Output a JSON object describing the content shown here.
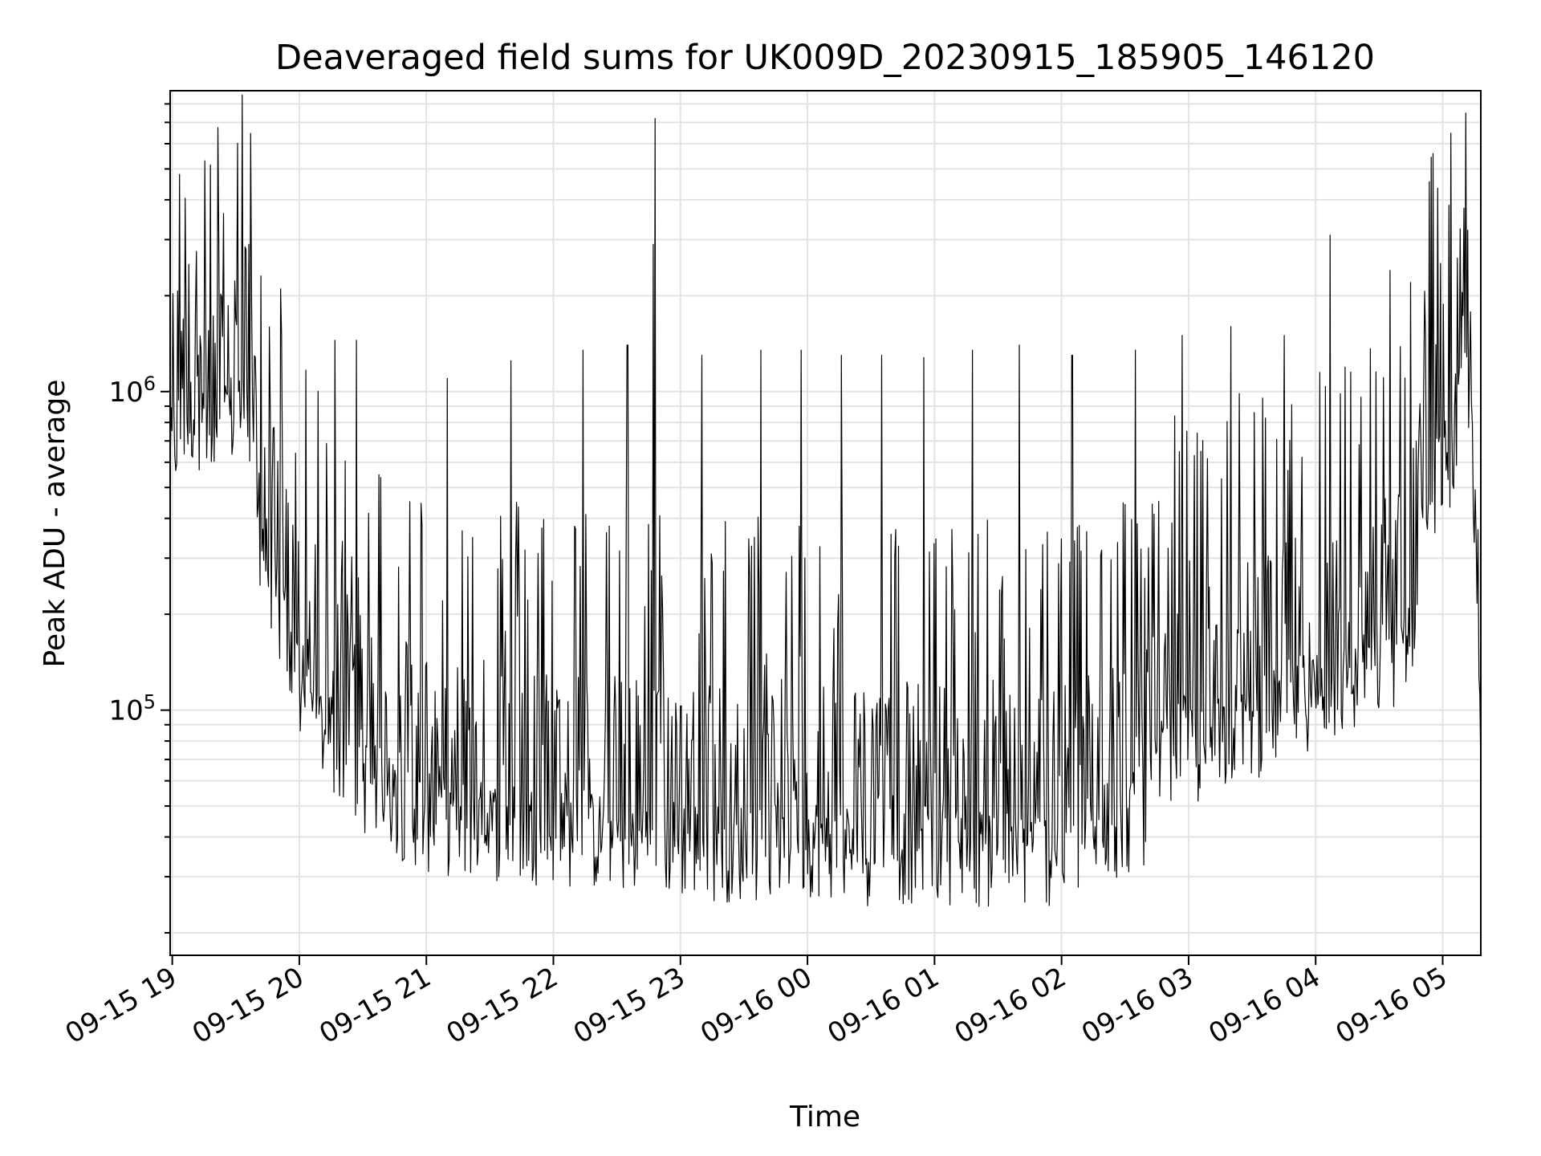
{
  "chart_data": {
    "type": "line",
    "title": "Deaveraged field sums for UK009D_20230915_185905_146120",
    "xlabel": "Time",
    "ylabel": "Peak ADU - average",
    "y_scale": "log",
    "ylim": [
      17000,
      8800000
    ],
    "xlim": [
      "09-15 18:59",
      "09-16 05:18"
    ],
    "grid": true,
    "line_color": "#000000",
    "x_ticks": [
      "09-15 19",
      "09-15 20",
      "09-15 21",
      "09-15 22",
      "09-15 23",
      "09-16 00",
      "09-16 01",
      "09-16 02",
      "09-16 03",
      "09-16 04",
      "09-16 05"
    ],
    "y_ticks": [
      {
        "value": 100000,
        "base": "10",
        "exp": "5"
      },
      {
        "value": 1000000,
        "base": "10",
        "exp": "6"
      }
    ],
    "series": [
      {
        "baseline": [
          [
            "09-15 18:59",
            650000
          ],
          [
            "09-15 19:05",
            820000
          ],
          [
            "09-15 19:12",
            900000
          ],
          [
            "09-15 19:20",
            600000
          ],
          [
            "09-15 19:27",
            850000
          ],
          [
            "09-15 19:35",
            900000
          ],
          [
            "09-15 19:40",
            400000
          ],
          [
            "09-15 19:48",
            250000
          ],
          [
            "09-15 19:55",
            150000
          ],
          [
            "09-15 20:02",
            110000
          ],
          [
            "09-15 20:10",
            90000
          ],
          [
            "09-15 20:20",
            75000
          ],
          [
            "09-15 20:30",
            62000
          ],
          [
            "09-15 20:45",
            53000
          ],
          [
            "09-15 21:00",
            47000
          ],
          [
            "09-15 21:20",
            45000
          ],
          [
            "09-15 21:40",
            44000
          ],
          [
            "09-15 22:00",
            43000
          ],
          [
            "09-15 22:20",
            41000
          ],
          [
            "09-15 22:40",
            40000
          ],
          [
            "09-15 23:00",
            39000
          ],
          [
            "09-15 23:30",
            38000
          ],
          [
            "09-16 00:00",
            40000
          ],
          [
            "09-16 00:30",
            37000
          ],
          [
            "09-16 01:00",
            38000
          ],
          [
            "09-16 01:30",
            36000
          ],
          [
            "09-16 02:00",
            37000
          ],
          [
            "09-16 02:20",
            42000
          ],
          [
            "09-16 02:40",
            50000
          ],
          [
            "09-16 02:50",
            80000
          ],
          [
            "09-16 03:05",
            75000
          ],
          [
            "09-16 03:20",
            90000
          ],
          [
            "09-16 03:35",
            95000
          ],
          [
            "09-16 03:50",
            110000
          ],
          [
            "09-16 04:05",
            120000
          ],
          [
            "09-16 04:20",
            125000
          ],
          [
            "09-16 04:35",
            150000
          ],
          [
            "09-16 04:45",
            180000
          ],
          [
            "09-16 04:52",
            500000
          ],
          [
            "09-16 05:00",
            600000
          ],
          [
            "09-16 05:06",
            700000
          ],
          [
            "09-16 05:10",
            1400000
          ],
          [
            "09-16 05:14",
            800000
          ],
          [
            "09-16 05:18",
            65000
          ]
        ],
        "peaks": [
          [
            "09-15 19:36",
            2900000
          ],
          [
            "09-15 19:51",
            2100000
          ],
          [
            "09-15 20:17",
            1450000
          ],
          [
            "09-15 20:27",
            1450000
          ],
          [
            "09-15 21:10",
            1100000
          ],
          [
            "09-15 21:40",
            1250000
          ],
          [
            "09-15 22:14",
            1350000
          ],
          [
            "09-15 22:35",
            1400000
          ],
          [
            "09-15 22:48",
            7200000
          ],
          [
            "09-15 22:47",
            2900000
          ],
          [
            "09-15 23:10",
            1300000
          ],
          [
            "09-15 23:38",
            1350000
          ],
          [
            "09-15 23:57",
            1350000
          ],
          [
            "09-16 00:16",
            1300000
          ],
          [
            "09-16 00:35",
            1300000
          ],
          [
            "09-16 00:55",
            1280000
          ],
          [
            "09-16 01:18",
            1350000
          ],
          [
            "09-16 01:40",
            1400000
          ],
          [
            "09-16 02:05",
            1300000
          ],
          [
            "09-16 02:35",
            1350000
          ],
          [
            "09-16 02:57",
            1500000
          ],
          [
            "09-16 03:20",
            1600000
          ],
          [
            "09-16 03:45",
            1500000
          ],
          [
            "09-16 04:07",
            3100000
          ],
          [
            "09-16 04:35",
            2400000
          ],
          [
            "09-16 04:45",
            2200000
          ],
          [
            "09-16 05:09",
            2050000
          ]
        ]
      }
    ]
  }
}
